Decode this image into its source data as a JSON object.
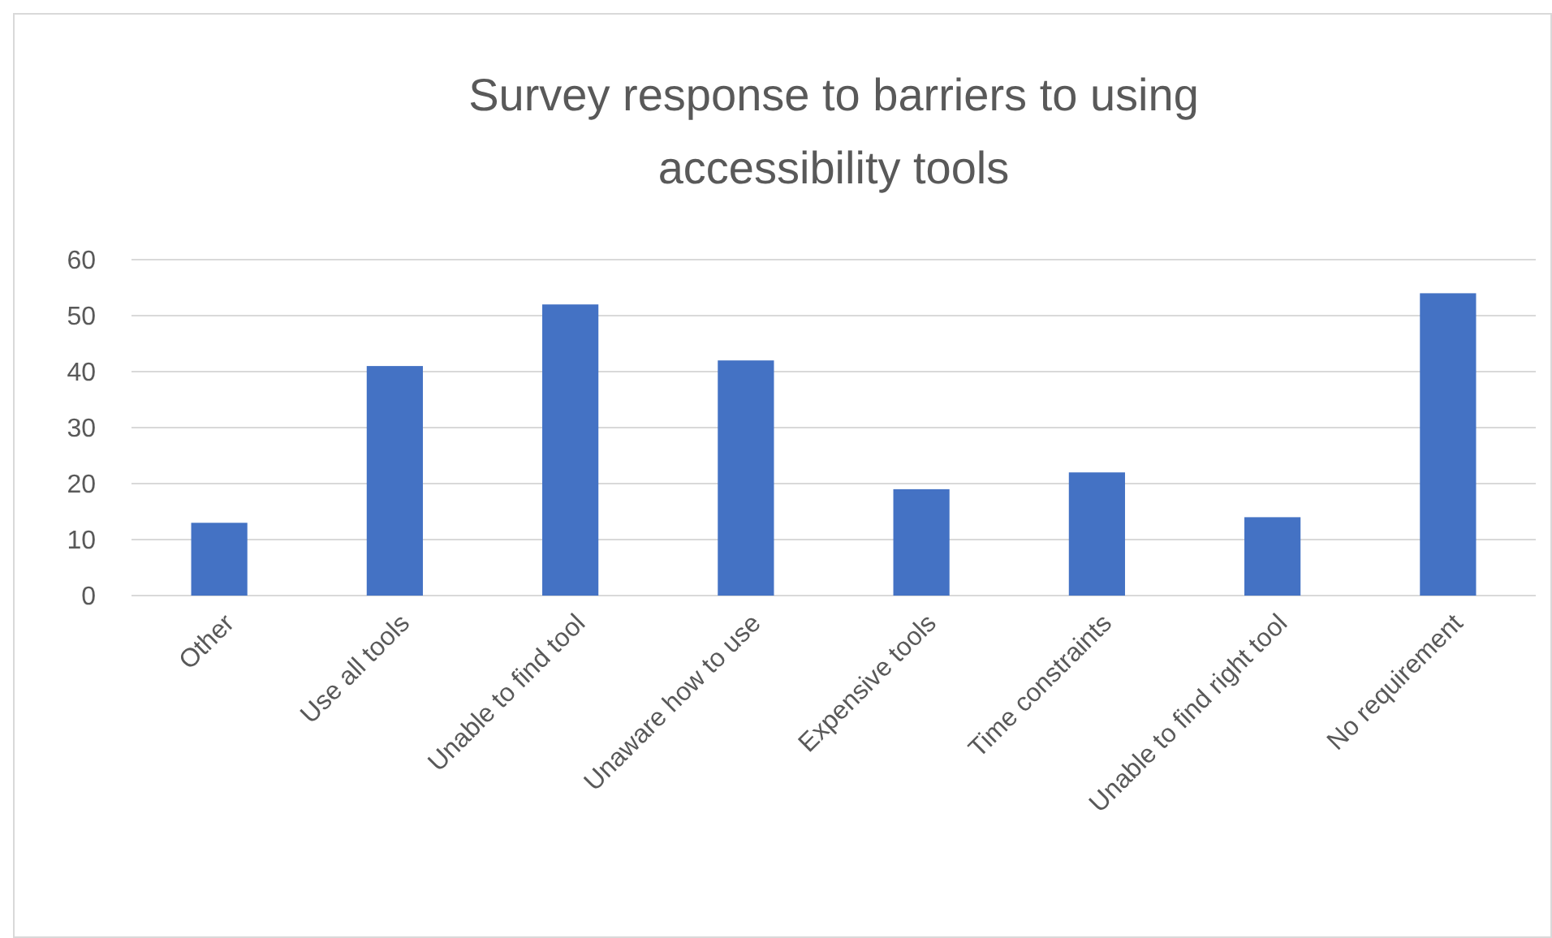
{
  "chart_data": {
    "type": "bar",
    "title": "Survey response to barriers to using accessibility tools",
    "categories": [
      "Other",
      "Use all tools",
      "Unable to find tool",
      "Unaware how to use",
      "Expensive tools",
      "Time constraints",
      "Unable to find right tool",
      "No requirement"
    ],
    "values": [
      13,
      41,
      52,
      42,
      19,
      22,
      14,
      54
    ],
    "color": "#4472c4",
    "ylim": [
      0,
      60
    ],
    "yticks": [
      0,
      10,
      20,
      30,
      40,
      50,
      60
    ],
    "grid": "y"
  }
}
